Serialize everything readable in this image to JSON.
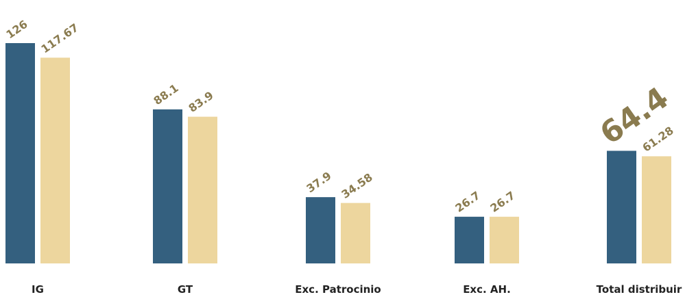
{
  "chart_data": {
    "type": "bar",
    "categories": [
      "IG",
      "GT",
      "Exc. Patrocinio",
      "Exc. AH.",
      "Total distribuir"
    ],
    "series": [
      {
        "values": [
          126,
          88.1,
          37.9,
          26.7,
          64.4
        ],
        "color": "#34607f"
      },
      {
        "values": [
          117.67,
          83.9,
          34.58,
          26.7,
          61.28
        ],
        "color": "#edd69e"
      }
    ],
    "value_labels": [
      [
        "126",
        "88.1",
        "37.9",
        "26.7",
        "64.4"
      ],
      [
        "117.67",
        "83.9",
        "34.58",
        "26.7",
        "61.28"
      ]
    ],
    "highlighted_label": {
      "series": 0,
      "category": 4
    },
    "label_color": "#8a7b4f",
    "ylim": [
      0,
      126
    ],
    "title": "",
    "xlabel": "",
    "ylabel": "",
    "grid": false,
    "legend": "none"
  }
}
